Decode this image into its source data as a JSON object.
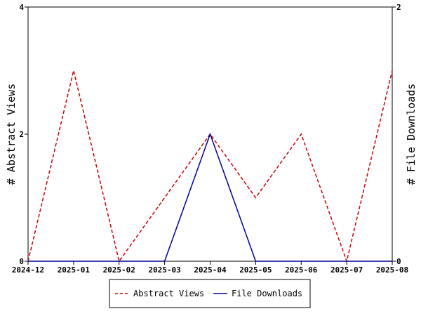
{
  "chart_data": {
    "type": "line",
    "categories": [
      "2024-12",
      "2025-01",
      "2025-02",
      "2025-03",
      "2025-04",
      "2025-05",
      "2025-06",
      "2025-07",
      "2025-08"
    ],
    "series": [
      {
        "name": "Abstract Views",
        "axis": "left",
        "color": "#cc0000",
        "dash": true,
        "values": [
          0,
          3,
          0,
          1,
          2,
          1,
          2,
          0,
          3
        ]
      },
      {
        "name": "File Downloads",
        "axis": "right",
        "color": "#000099",
        "dash": false,
        "values": [
          0,
          0,
          0,
          0,
          1,
          0,
          0,
          0,
          0
        ]
      }
    ],
    "ylabel": "# Abstract Views",
    "ylabel_right": "# File Downloads",
    "ylim": [
      0,
      4
    ],
    "ylim_right": [
      0,
      2
    ],
    "yticks": [
      "0",
      "2",
      "4"
    ],
    "yticks_right": [
      "0",
      "2"
    ],
    "grid": false,
    "legend_position": "bottom"
  }
}
